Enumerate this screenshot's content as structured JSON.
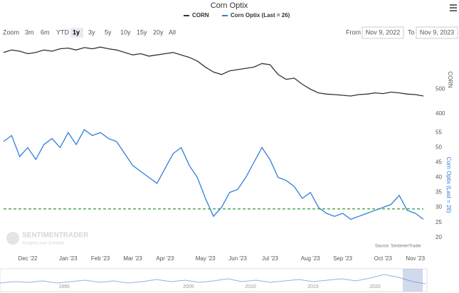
{
  "chart_data": [
    {
      "type": "line",
      "title": "Corn Optix",
      "series": [
        {
          "name": "CORN",
          "color": "#333333",
          "values": [
            650,
            660,
            655,
            645,
            650,
            660,
            655,
            665,
            668,
            660,
            670,
            665,
            672,
            665,
            660,
            650,
            640,
            645,
            635,
            640,
            645,
            650,
            640,
            630,
            615,
            590,
            570,
            560,
            575,
            580,
            585,
            590,
            605,
            600,
            560,
            540,
            545,
            520,
            500,
            485,
            480,
            478,
            475,
            472,
            478,
            480,
            485,
            482,
            488,
            485,
            480,
            478,
            472
          ]
        }
      ],
      "axis_title": "CORN",
      "ylim": [
        385,
        690
      ],
      "yticks": [
        400,
        500
      ]
    },
    {
      "type": "line",
      "categories": [
        null,
        null,
        null,
        "Dec '22",
        null,
        null,
        null,
        null,
        "Jan '23",
        null,
        null,
        null,
        "Feb '23",
        null,
        null,
        null,
        "Mar '23",
        null,
        null,
        null,
        "Apr '23",
        null,
        null,
        null,
        null,
        "May '23",
        null,
        null,
        null,
        "Jun '23",
        null,
        null,
        null,
        "Jul '23",
        null,
        null,
        null,
        null,
        "Aug '23",
        null,
        null,
        null,
        "Sep '23",
        null,
        null,
        null,
        null,
        "Oct '23",
        null,
        null,
        null,
        "Nov '23",
        null
      ],
      "series": [
        {
          "name": "Corn Optix (Last = 26)",
          "color": "#2f7ed8",
          "values": [
            52,
            54,
            47,
            50,
            46,
            51,
            53,
            50,
            55,
            51,
            56,
            54,
            55,
            53,
            52,
            48,
            44,
            42,
            40,
            38,
            43,
            48,
            50,
            44,
            40,
            33,
            27,
            30,
            35,
            36,
            40,
            45,
            50,
            46,
            40,
            39,
            37,
            33,
            35,
            30,
            28,
            27,
            28,
            26,
            27,
            28,
            29,
            30,
            31,
            34,
            29,
            28,
            26
          ]
        }
      ],
      "ylim": [
        18.5,
        57
      ],
      "yticks": [
        20,
        25,
        30,
        35,
        40,
        45,
        50,
        55
      ],
      "reference_line": {
        "value": 29.5,
        "color": "#2e9b2e"
      },
      "annotation": "Source: SentimenTrader"
    }
  ],
  "controls": {
    "zoom_label": "Zoom",
    "buttons": [
      "3m",
      "6m",
      "YTD",
      "1y",
      "3y",
      "5y",
      "10y",
      "15y",
      "20y",
      "All"
    ],
    "selected": "1y",
    "from_label": "From",
    "from": "Nov 9, 2022",
    "to_label": "To",
    "to": "Nov 9, 2023"
  },
  "watermark": {
    "brand": "SENTIMENTRADER",
    "tagline": "Analysis over Emotion"
  },
  "navigator": {
    "labels": [
      "1995",
      "2005",
      "2010",
      "2015",
      "2020"
    ]
  }
}
